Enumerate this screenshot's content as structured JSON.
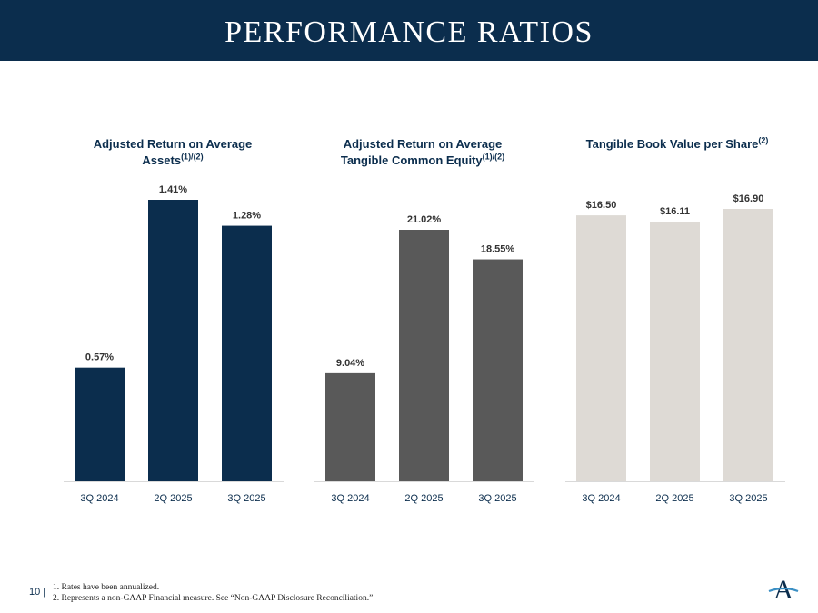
{
  "header": {
    "title": "PERFORMANCE RATIOS"
  },
  "chart_data": [
    {
      "type": "bar",
      "title": "Adjusted Return on Average Assets",
      "title_lines": [
        "Adjusted Return on Average",
        "Assets"
      ],
      "title_sup": "(1)/(2)",
      "categories": [
        "3Q 2024",
        "2Q 2025",
        "3Q 2025"
      ],
      "values": [
        0.57,
        1.41,
        1.28
      ],
      "data_labels": [
        "0.57%",
        "1.41%",
        "1.28%"
      ],
      "color": "#0b2d4d",
      "ylim": [
        0,
        1.41
      ],
      "grid": false
    },
    {
      "type": "bar",
      "title": "Adjusted Return on Average Tangible Common Equity",
      "title_lines": [
        "Adjusted Return on Average",
        "Tangible Common Equity"
      ],
      "title_sup": "(1)/(2)",
      "categories": [
        "3Q 2024",
        "2Q 2025",
        "3Q 2025"
      ],
      "values": [
        9.04,
        21.02,
        18.55
      ],
      "data_labels": [
        "9.04%",
        "21.02%",
        "18.55%"
      ],
      "color": "#595959",
      "ylim": [
        0,
        21.02
      ],
      "grid": false
    },
    {
      "type": "bar",
      "title": "Tangible Book Value per Share",
      "title_lines": [
        "Tangible Book Value per Share"
      ],
      "title_sup": "(2)",
      "categories": [
        "3Q 2024",
        "2Q 2025",
        "3Q 2025"
      ],
      "values": [
        16.5,
        16.11,
        16.9
      ],
      "data_labels": [
        "$16.50",
        "$16.11",
        "$16.90"
      ],
      "color": "#dedad5",
      "ylim": [
        0,
        16.9
      ],
      "grid": false
    }
  ],
  "footer": {
    "page_number": "10 |",
    "notes": [
      "1. Rates have been annualized.",
      "2. Represents a non-GAAP Financial measure. See “Non-GAAP Disclosure Reconciliation.”"
    ],
    "logo_letter": "A"
  }
}
